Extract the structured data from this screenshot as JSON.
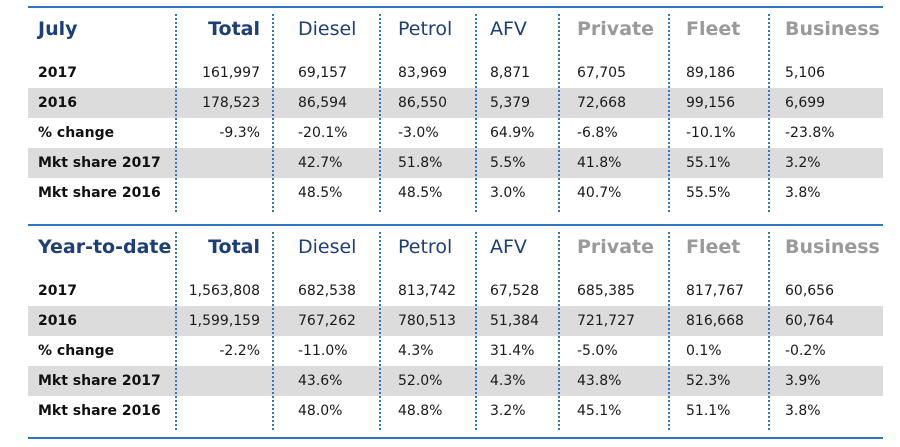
{
  "tables": [
    {
      "title": "July",
      "columns": [
        "Total",
        "Diesel",
        "Petrol",
        "AFV",
        "Private",
        "Fleet",
        "Business"
      ],
      "rows": [
        {
          "label": "2017",
          "values": [
            "161,997",
            "69,157",
            "83,969",
            "8,871",
            "67,705",
            "89,186",
            "5,106"
          ]
        },
        {
          "label": "2016",
          "values": [
            "178,523",
            "86,594",
            "86,550",
            "5,379",
            "72,668",
            "99,156",
            "6,699"
          ]
        },
        {
          "label": "% change",
          "values": [
            "-9.3%",
            "-20.1%",
            "-3.0%",
            "64.9%",
            "-6.8%",
            "-10.1%",
            "-23.8%"
          ]
        },
        {
          "label": "Mkt share 2017",
          "values": [
            "",
            "42.7%",
            "51.8%",
            "5.5%",
            "41.8%",
            "55.1%",
            "3.2%"
          ]
        },
        {
          "label": "Mkt share 2016",
          "values": [
            "",
            "48.5%",
            "48.5%",
            "3.0%",
            "40.7%",
            "55.5%",
            "3.8%"
          ]
        }
      ]
    },
    {
      "title": "Year-to-date",
      "columns": [
        "Total",
        "Diesel",
        "Petrol",
        "AFV",
        "Private",
        "Fleet",
        "Business"
      ],
      "rows": [
        {
          "label": "2017",
          "values": [
            "1,563,808",
            "682,538",
            "813,742",
            "67,528",
            "685,385",
            "817,767",
            "60,656"
          ]
        },
        {
          "label": "2016",
          "values": [
            "1,599,159",
            "767,262",
            "780,513",
            "51,384",
            "721,727",
            "816,668",
            "60,764"
          ]
        },
        {
          "label": "% change",
          "values": [
            "-2.2%",
            "-11.0%",
            "4.3%",
            "31.4%",
            "-5.0%",
            "0.1%",
            "-0.2%"
          ]
        },
        {
          "label": "Mkt share 2017",
          "values": [
            "",
            "43.6%",
            "52.0%",
            "4.3%",
            "43.8%",
            "52.3%",
            "3.9%"
          ]
        },
        {
          "label": "Mkt share 2016",
          "values": [
            "",
            "48.0%",
            "48.8%",
            "3.2%",
            "45.1%",
            "51.1%",
            "3.8%"
          ]
        }
      ]
    }
  ],
  "colors": {
    "rule": "#2f78c0",
    "title": "#1c3f7a",
    "buyer_header": "#9a9a9a",
    "shaded_row": "#dcdcdc"
  },
  "chart_data": [
    {
      "type": "table",
      "title": "July",
      "columns": [
        "",
        "Total",
        "Diesel",
        "Petrol",
        "AFV",
        "Private",
        "Fleet",
        "Business"
      ],
      "rows": [
        [
          "2017",
          161997,
          69157,
          83969,
          8871,
          67705,
          89186,
          5106
        ],
        [
          "2016",
          178523,
          86594,
          86550,
          5379,
          72668,
          99156,
          6699
        ],
        [
          "% change",
          -9.3,
          -20.1,
          -3.0,
          64.9,
          -6.8,
          -10.1,
          -23.8
        ],
        [
          "Mkt share 2017",
          null,
          42.7,
          51.8,
          5.5,
          41.8,
          55.1,
          3.2
        ],
        [
          "Mkt share 2016",
          null,
          48.5,
          48.5,
          3.0,
          40.7,
          55.5,
          3.8
        ]
      ]
    },
    {
      "type": "table",
      "title": "Year-to-date",
      "columns": [
        "",
        "Total",
        "Diesel",
        "Petrol",
        "AFV",
        "Private",
        "Fleet",
        "Business"
      ],
      "rows": [
        [
          "2017",
          1563808,
          682538,
          813742,
          67528,
          685385,
          817767,
          60656
        ],
        [
          "2016",
          1599159,
          767262,
          780513,
          51384,
          721727,
          816668,
          60764
        ],
        [
          "% change",
          -2.2,
          -11.0,
          4.3,
          31.4,
          -5.0,
          0.1,
          -0.2
        ],
        [
          "Mkt share 2017",
          null,
          43.6,
          52.0,
          4.3,
          43.8,
          52.3,
          3.9
        ],
        [
          "Mkt share 2016",
          null,
          48.0,
          48.8,
          3.2,
          45.1,
          51.1,
          3.8
        ]
      ]
    }
  ]
}
